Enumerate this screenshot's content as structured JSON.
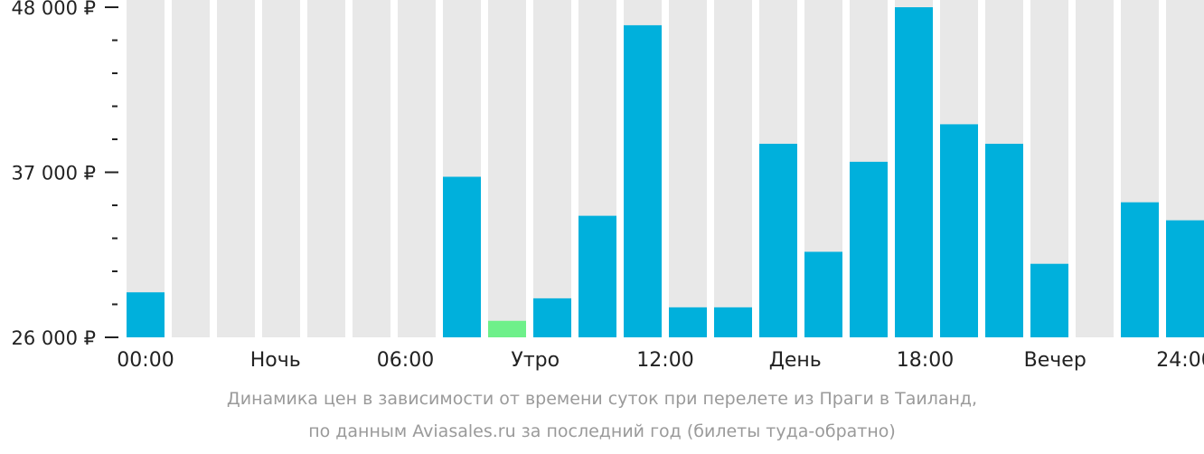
{
  "chart_data": {
    "type": "bar",
    "categories": [
      "00:00",
      "01:00",
      "02:00",
      "03:00",
      "04:00",
      "05:00",
      "06:00",
      "07:00",
      "08:00",
      "09:00",
      "10:00",
      "11:00",
      "12:00",
      "13:00",
      "14:00",
      "15:00",
      "16:00",
      "17:00",
      "18:00",
      "19:00",
      "20:00",
      "21:00",
      "22:00",
      "23:00"
    ],
    "values": [
      29000,
      null,
      null,
      null,
      null,
      null,
      null,
      36700,
      27100,
      28600,
      34100,
      46800,
      28000,
      28000,
      38900,
      31700,
      37700,
      48000,
      40200,
      38900,
      30900,
      null,
      35000,
      33800
    ],
    "highlight_index": 8,
    "ylim": [
      26000,
      48000
    ],
    "y_tick_labels": [
      "48 000 ₽",
      "37 000 ₽",
      "26 000 ₽"
    ],
    "y_tick_values": [
      48000,
      37000,
      26000
    ],
    "x_tick_labels": [
      "00:00",
      "Ночь",
      "06:00",
      "Утро",
      "12:00",
      "День",
      "18:00",
      "Вечер",
      "24:00"
    ],
    "colors": {
      "bar": "#00b0dc",
      "highlight": "#6ef08a",
      "background_column": "#e8e8e8",
      "axis": "#222222"
    }
  },
  "caption": {
    "line1": "Динамика цен в зависимости от времени суток при перелете из Праги в Таиланд,",
    "line2": "по данным Aviasales.ru за последний год (билеты туда-обратно)"
  }
}
